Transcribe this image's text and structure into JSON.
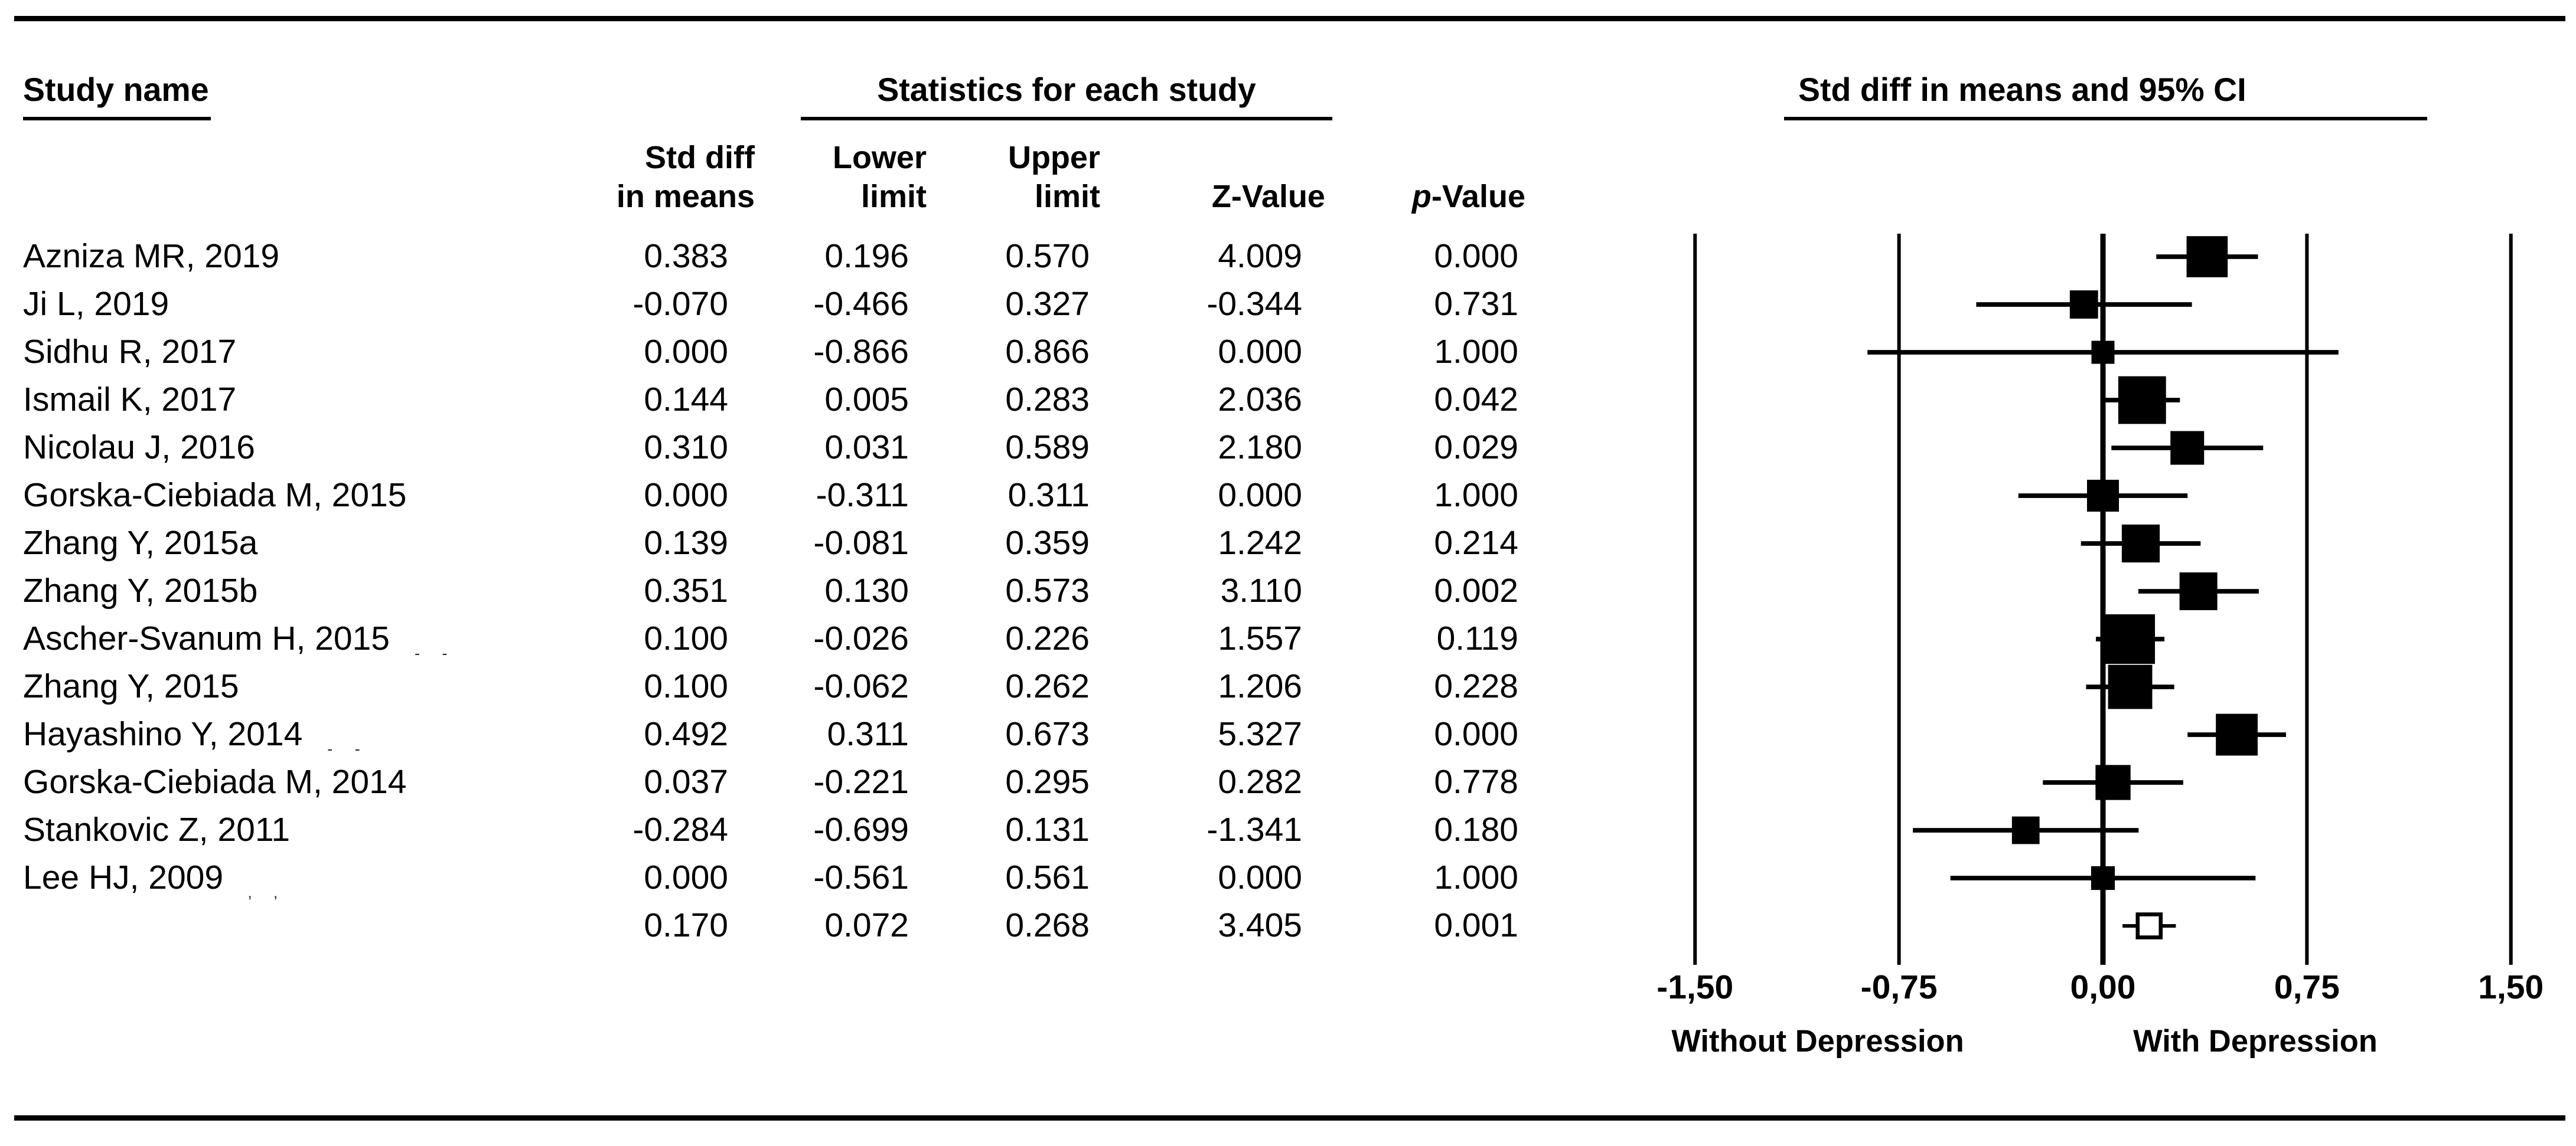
{
  "header": {
    "study_col_label": "Study name",
    "stats_col_label": "Statistics for each study",
    "plot_col_label": "Std diff in means and 95% CI"
  },
  "columns": [
    {
      "line1": "Std diff",
      "line2": "in means",
      "italic_first": false
    },
    {
      "line1": "Lower",
      "line2": "limit",
      "italic_first": false
    },
    {
      "line1": "Upper",
      "line2": "limit",
      "italic_first": false
    },
    {
      "line1": "",
      "line2": "Z-Value",
      "italic_first": false
    },
    {
      "line1": "",
      "line2": "p-Value",
      "italic_first": true
    }
  ],
  "chart_data": {
    "type": "forest",
    "title": "Std diff in means and 95% CI",
    "xlim": [
      -1.5,
      1.5
    ],
    "x_ticks": [
      -1.5,
      -0.75,
      0,
      0.75,
      1.5
    ],
    "x_tick_labels": [
      "-1,50",
      "-0,75",
      "0,00",
      "0,75",
      "1,50"
    ],
    "left_direction_label": "Without Depression",
    "right_direction_label": "With Depression",
    "grid": "vertical-lines-at-ticks",
    "marker_color": "#000000",
    "summary_marker": "open-square",
    "studies": [
      {
        "name": "Azniza MR, 2019",
        "marks": "",
        "std_diff": "0.383",
        "lower": "0.196",
        "upper": "0.570",
        "z": "4.009",
        "p": "0.000"
      },
      {
        "name": "Ji L, 2019",
        "marks": "",
        "std_diff": "-0.070",
        "lower": "-0.466",
        "upper": "0.327",
        "z": "-0.344",
        "p": "0.731"
      },
      {
        "name": "Sidhu R, 2017",
        "marks": "",
        "std_diff": "0.000",
        "lower": "-0.866",
        "upper": "0.866",
        "z": "0.000",
        "p": "1.000"
      },
      {
        "name": "Ismail K, 2017",
        "marks": "",
        "std_diff": "0.144",
        "lower": "0.005",
        "upper": "0.283",
        "z": "2.036",
        "p": "0.042"
      },
      {
        "name": "Nicolau J, 2016",
        "marks": "",
        "std_diff": "0.310",
        "lower": "0.031",
        "upper": "0.589",
        "z": "2.180",
        "p": "0.029"
      },
      {
        "name": "Gorska-Ciebiada M, 2015",
        "marks": "",
        "std_diff": "0.000",
        "lower": "-0.311",
        "upper": "0.311",
        "z": "0.000",
        "p": "1.000"
      },
      {
        "name": "Zhang Y, 2015a",
        "marks": "",
        "std_diff": "0.139",
        "lower": "-0.081",
        "upper": "0.359",
        "z": "1.242",
        "p": "0.214"
      },
      {
        "name": "Zhang Y, 2015b",
        "marks": "",
        "std_diff": "0.351",
        "lower": "0.130",
        "upper": "0.573",
        "z": "3.110",
        "p": "0.002"
      },
      {
        "name": "Ascher-Svanum H, 2015",
        "marks": "- -",
        "std_diff": "0.100",
        "lower": "-0.026",
        "upper": "0.226",
        "z": "1.557",
        "p": "0.119"
      },
      {
        "name": "Zhang Y, 2015",
        "marks": "",
        "std_diff": "0.100",
        "lower": "-0.062",
        "upper": "0.262",
        "z": "1.206",
        "p": "0.228"
      },
      {
        "name": "Hayashino Y, 2014",
        "marks": "- -",
        "std_diff": "0.492",
        "lower": "0.311",
        "upper": "0.673",
        "z": "5.327",
        "p": "0.000"
      },
      {
        "name": "Gorska-Ciebiada M, 2014",
        "marks": "",
        "std_diff": "0.037",
        "lower": "-0.221",
        "upper": "0.295",
        "z": "0.282",
        "p": "0.778"
      },
      {
        "name": "Stankovic Z, 2011",
        "marks": "",
        "std_diff": "-0.284",
        "lower": "-0.699",
        "upper": "0.131",
        "z": "-1.341",
        "p": "0.180"
      },
      {
        "name": "Lee HJ, 2009",
        "marks": "‚ ‚",
        "std_diff": "0.000",
        "lower": "-0.561",
        "upper": "0.561",
        "z": "0.000",
        "p": "1.000"
      }
    ],
    "summary": {
      "name": "",
      "std_diff": "0.170",
      "lower": "0.072",
      "upper": "0.268",
      "z": "3.405",
      "p": "0.001"
    }
  }
}
